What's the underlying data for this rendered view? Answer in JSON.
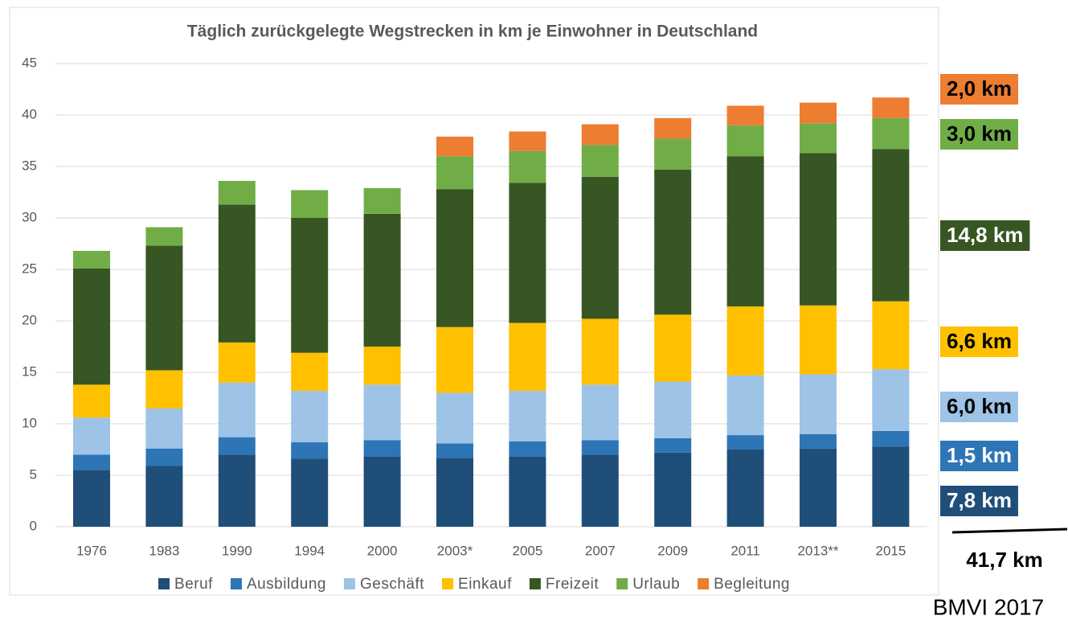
{
  "chart_data": {
    "type": "stacked_bar",
    "title": "Täglich zurückgelegte Wegstrecken in km je Einwohner in Deutschland",
    "categories": [
      "1976",
      "1983",
      "1990",
      "1994",
      "2000",
      "2003*",
      "2005",
      "2007",
      "2009",
      "2011",
      "2013**",
      "2015"
    ],
    "series": [
      {
        "name": "Beruf",
        "color": "#1f4e79",
        "values": [
          5.5,
          5.9,
          7.0,
          6.6,
          6.8,
          6.7,
          6.8,
          7.0,
          7.2,
          7.5,
          7.6,
          7.8
        ]
      },
      {
        "name": "Ausbildung",
        "color": "#2e75b6",
        "values": [
          1.5,
          1.7,
          1.7,
          1.6,
          1.6,
          1.4,
          1.5,
          1.4,
          1.4,
          1.4,
          1.4,
          1.5
        ]
      },
      {
        "name": "Geschäft",
        "color": "#9dc3e6",
        "values": [
          3.6,
          3.9,
          5.3,
          5.0,
          5.4,
          4.9,
          4.9,
          5.4,
          5.5,
          5.8,
          5.8,
          6.0
        ]
      },
      {
        "name": "Einkauf",
        "color": "#ffc000",
        "values": [
          3.2,
          3.7,
          3.9,
          3.7,
          3.7,
          6.4,
          6.6,
          6.4,
          6.5,
          6.7,
          6.7,
          6.6
        ]
      },
      {
        "name": "Freizeit",
        "color": "#375623",
        "values": [
          11.3,
          12.1,
          13.4,
          13.1,
          12.9,
          13.4,
          13.6,
          13.8,
          14.1,
          14.6,
          14.8,
          14.8
        ]
      },
      {
        "name": "Urlaub",
        "color": "#70ad47",
        "values": [
          1.7,
          1.8,
          2.3,
          2.7,
          2.5,
          3.2,
          3.1,
          3.1,
          3.0,
          3.0,
          2.9,
          3.0
        ]
      },
      {
        "name": "Begleitung",
        "color": "#ed7d31",
        "values": [
          null,
          null,
          null,
          null,
          null,
          1.9,
          1.9,
          2.0,
          2.0,
          1.9,
          2.0,
          2.0
        ]
      }
    ],
    "ylim": [
      0,
      45
    ],
    "yticks": [
      0,
      5,
      10,
      15,
      20,
      25,
      30,
      35,
      40,
      45
    ],
    "grid": true,
    "legend": "bottom",
    "side_labels": [
      {
        "text": "2,0 km",
        "color": "#ed7d31",
        "text_color": "#000000"
      },
      {
        "text": "3,0 km",
        "color": "#70ad47",
        "text_color": "#000000"
      },
      {
        "text": "14,8 km",
        "color": "#375623",
        "text_color": "#ffffff"
      },
      {
        "text": "6,6 km",
        "color": "#ffc000",
        "text_color": "#000000"
      },
      {
        "text": "6,0 km",
        "color": "#9dc3e6",
        "text_color": "#000000"
      },
      {
        "text": "1,5 km",
        "color": "#2e75b6",
        "text_color": "#ffffff"
      },
      {
        "text": "7,8 km",
        "color": "#1f4e79",
        "text_color": "#ffffff"
      }
    ],
    "total_label": "41,7 km",
    "source": "BMVI 2017"
  }
}
